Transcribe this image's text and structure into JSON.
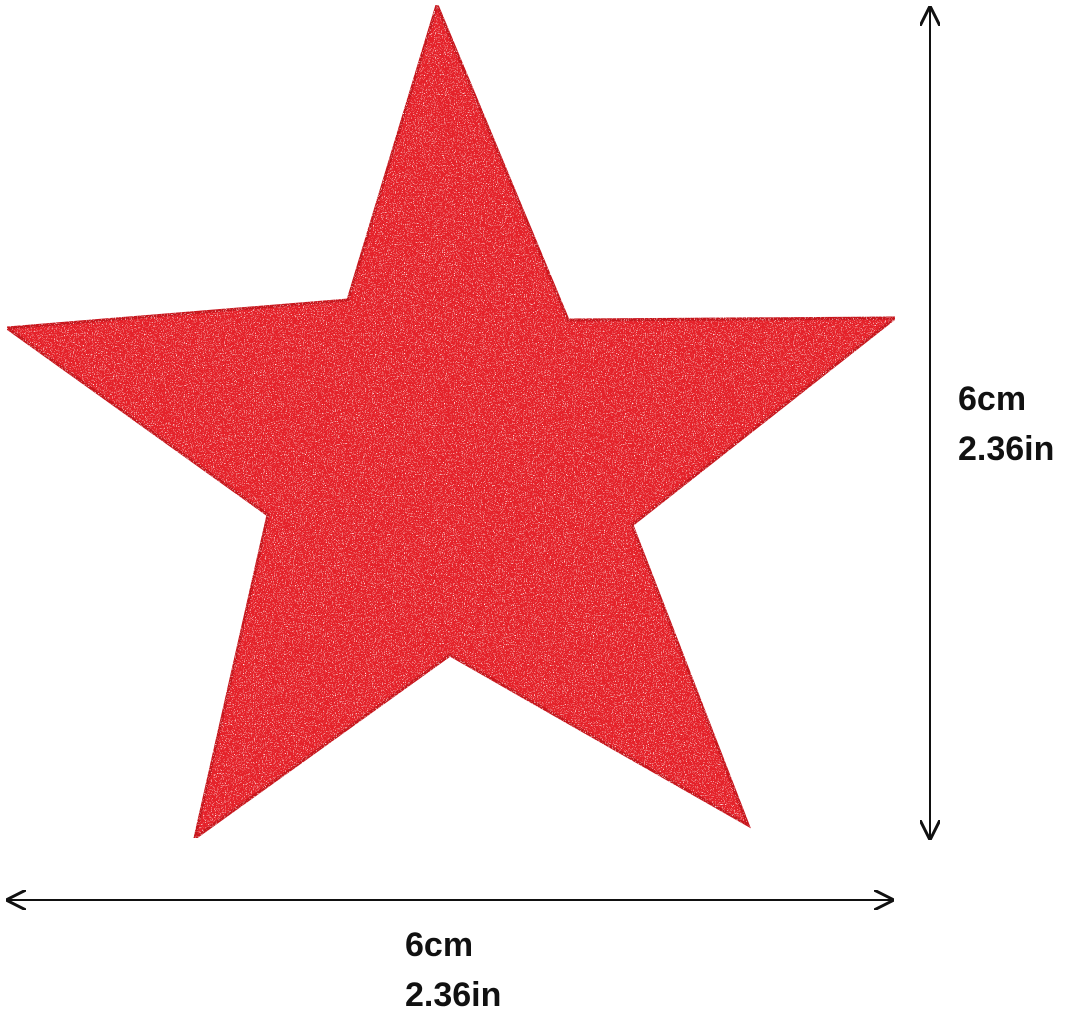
{
  "product": {
    "shape": "star",
    "color": "#e5212b",
    "finish": "glitter"
  },
  "dimensions": {
    "height": {
      "metric": "6cm",
      "imperial": "2.36in"
    },
    "width": {
      "metric": "6cm",
      "imperial": "2.36in"
    }
  }
}
